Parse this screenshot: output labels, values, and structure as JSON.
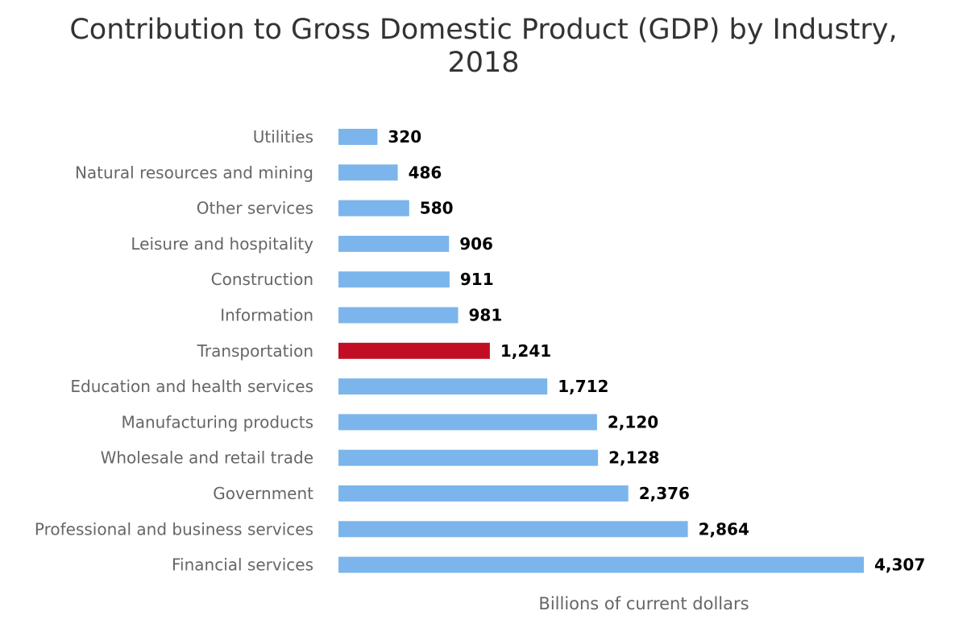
{
  "chart_data": {
    "type": "bar",
    "orientation": "horizontal",
    "title_lines": [
      "Contribution to Gross Domestic Product (GDP) by Industry,",
      "2018"
    ],
    "title": "Contribution to Gross Domestic Product (GDP) by Industry, 2018",
    "xlabel": "Billions of current dollars",
    "ylabel": "",
    "xlim": [
      0,
      4500
    ],
    "grid": false,
    "legend": false,
    "categories": [
      "Utilities",
      "Natural resources and mining",
      "Other services",
      "Leisure and hospitality",
      "Construction",
      "Information",
      "Transportation",
      "Education and health services",
      "Manufacturing products",
      "Wholesale and retail trade",
      "Government",
      "Professional and business services",
      "Financial services"
    ],
    "values": [
      320,
      486,
      580,
      906,
      911,
      981,
      1241,
      1712,
      2120,
      2128,
      2376,
      2864,
      4307
    ],
    "value_labels": [
      "320",
      "486",
      "580",
      "906",
      "911",
      "981",
      "1,241",
      "1,712",
      "2,120",
      "2,128",
      "2,376",
      "2,864",
      "4,307"
    ],
    "colors": {
      "default": "#7cb5ec",
      "highlight": "#c20e24"
    },
    "highlight_category": "Transportation"
  }
}
